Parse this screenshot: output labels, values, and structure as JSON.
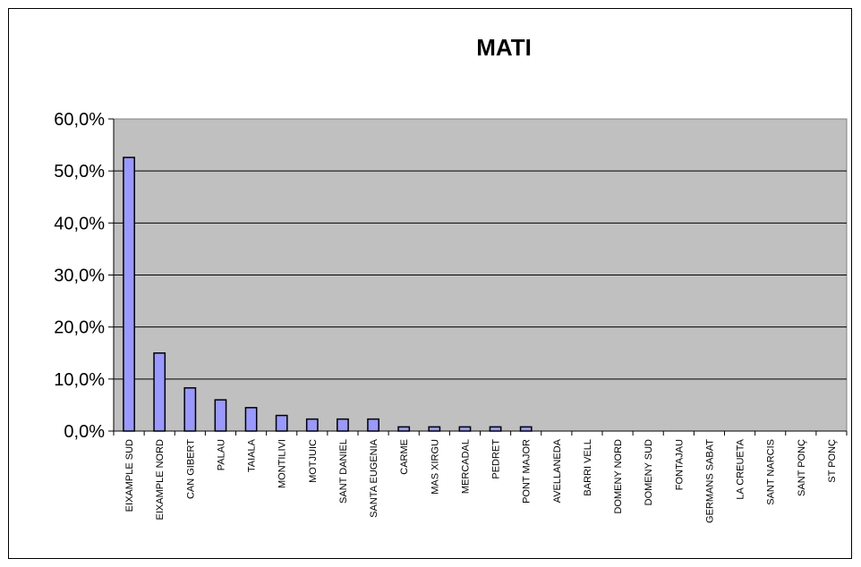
{
  "chart_data": {
    "type": "bar",
    "title": "MATI",
    "xlabel": "",
    "ylabel": "",
    "categories": [
      "EIXAMPLE SUD",
      "EIXAMPLE NORD",
      "CAN GIBERT",
      "PALAU",
      "TAIALA",
      "MONTILIVI",
      "MOTJUIC",
      "SANT DANIEL",
      "SANTA EUGENIA",
      "CARME",
      "MAS XIRGU",
      "MERCADAL",
      "PEDRET",
      "PONT MAJOR",
      "AVELLANEDA",
      "BARRI VELL",
      "DOMENY NORD",
      "DOMENY SUD",
      "FONTAJAU",
      "GERMANS SABAT",
      "LA CREUETA",
      "SANT NARCIS",
      "SANT PONÇ",
      "ST PONÇ"
    ],
    "values": [
      52.6,
      15.0,
      8.3,
      6.0,
      4.5,
      3.0,
      2.3,
      2.3,
      2.3,
      0.8,
      0.8,
      0.8,
      0.8,
      0.8,
      0,
      0,
      0,
      0,
      0,
      0,
      0,
      0,
      0,
      0
    ],
    "ylim": [
      0,
      60
    ],
    "yticks": [
      "0,0%",
      "10,0%",
      "20,0%",
      "30,0%",
      "40,0%",
      "50,0%",
      "60,0%"
    ],
    "grid": true,
    "legend": "none",
    "colors": {
      "bar": "#9999ff",
      "bar_edge": "#000000",
      "plot_bg": "#c0c0c0",
      "grid": "#000000"
    }
  }
}
